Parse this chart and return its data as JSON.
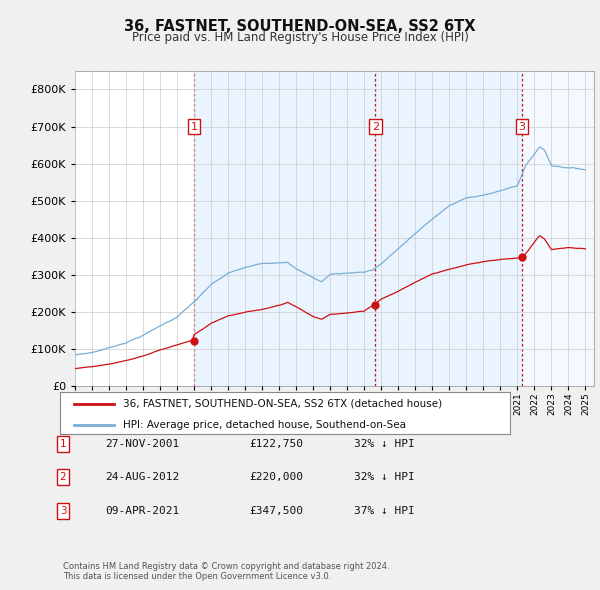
{
  "title": "36, FASTNET, SOUTHEND-ON-SEA, SS2 6TX",
  "subtitle": "Price paid vs. HM Land Registry's House Price Index (HPI)",
  "ylim": [
    0,
    850000
  ],
  "yticks": [
    0,
    100000,
    200000,
    300000,
    400000,
    500000,
    600000,
    700000,
    800000
  ],
  "hpi_color": "#7aadd4",
  "hpi_fill_color": "#ddeeff",
  "price_color": "#cc1111",
  "vline_color": "#cc1111",
  "purchases": [
    {
      "date": 2002.0,
      "price": 122750,
      "label": "1"
    },
    {
      "date": 2012.65,
      "price": 220000,
      "label": "2"
    },
    {
      "date": 2021.27,
      "price": 347500,
      "label": "3"
    }
  ],
  "legend_price_label": "36, FASTNET, SOUTHEND-ON-SEA, SS2 6TX (detached house)",
  "legend_hpi_label": "HPI: Average price, detached house, Southend-on-Sea",
  "table_rows": [
    [
      "1",
      "27-NOV-2001",
      "£122,750",
      "32% ↓ HPI"
    ],
    [
      "2",
      "24-AUG-2012",
      "£220,000",
      "32% ↓ HPI"
    ],
    [
      "3",
      "09-APR-2021",
      "£347,500",
      "37% ↓ HPI"
    ]
  ],
  "footer": "Contains HM Land Registry data © Crown copyright and database right 2024.\nThis data is licensed under the Open Government Licence v3.0.",
  "bg_color": "#f0f0f0",
  "plot_bg_color": "#ffffff",
  "grid_color": "#cccccc"
}
